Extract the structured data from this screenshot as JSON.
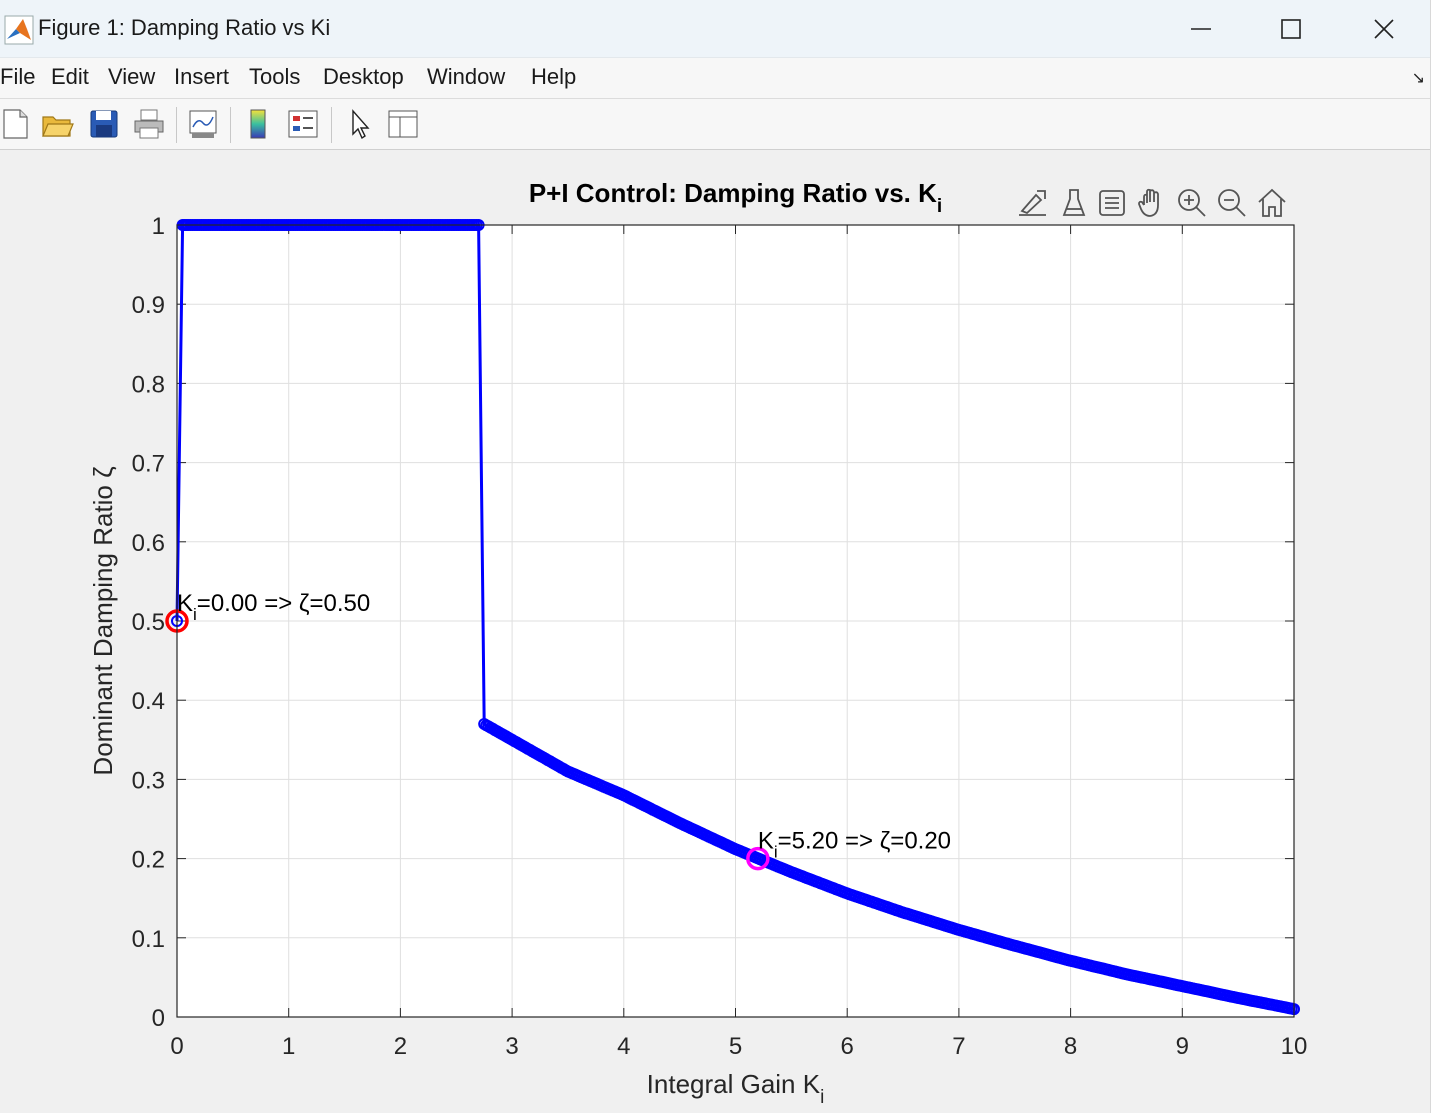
{
  "window": {
    "title": "Figure 1: Damping Ratio vs Ki"
  },
  "menu": {
    "items": [
      "File",
      "Edit",
      "View",
      "Insert",
      "Tools",
      "Desktop",
      "Window",
      "Help"
    ]
  },
  "toolbar": {
    "icons": [
      "new-figure-icon",
      "open-file-icon",
      "save-icon",
      "print-icon",
      "link-plot-icon",
      "colorbar-icon",
      "legend-icon",
      "pointer-icon",
      "property-inspector-icon"
    ]
  },
  "axes_toolbar": {
    "icons": [
      "brush-export-icon",
      "data-brush-icon",
      "data-tips-icon",
      "pan-icon",
      "zoom-in-icon",
      "zoom-out-icon",
      "home-icon"
    ]
  },
  "chart_data": {
    "type": "line",
    "title": "P+I Control: Damping Ratio vs. K",
    "title_subscript": "i",
    "xlabel": "Integral Gain K",
    "xlabel_subscript": "i",
    "ylabel": "Dominant Damping Ratio ζ",
    "xlim": [
      0,
      10
    ],
    "ylim": [
      0,
      1
    ],
    "xticks": [
      "0",
      "1",
      "2",
      "3",
      "4",
      "5",
      "6",
      "7",
      "8",
      "9",
      "10"
    ],
    "yticks": [
      "0",
      "0.1",
      "0.2",
      "0.3",
      "0.4",
      "0.5",
      "0.6",
      "0.7",
      "0.8",
      "0.9",
      "1"
    ],
    "grid": true,
    "series": [
      {
        "color": "#0000ff",
        "marker": "circle",
        "x": [
          0,
          0.05,
          0.1,
          0.5,
          1.0,
          1.5,
          2.0,
          2.5,
          2.7,
          2.75,
          3.0,
          3.5,
          4.0,
          4.5,
          5.0,
          5.5,
          6.0,
          6.5,
          7.0,
          7.5,
          8.0,
          8.5,
          9.0,
          9.5,
          10.0
        ],
        "y": [
          0.5,
          1.0,
          1.0,
          1.0,
          1.0,
          1.0,
          1.0,
          1.0,
          1.0,
          0.37,
          0.35,
          0.31,
          0.28,
          0.245,
          0.212,
          0.183,
          0.156,
          0.132,
          0.11,
          0.09,
          0.071,
          0.054,
          0.039,
          0.024,
          0.01
        ]
      }
    ],
    "highlights": [
      {
        "x": 0.0,
        "y": 0.5,
        "color": "#ff0000",
        "label": "=0.00 => ζ=0.50"
      },
      {
        "x": 5.2,
        "y": 0.2,
        "color": "#ff00ff",
        "label": "=5.20 => ζ=0.20"
      }
    ],
    "annotation_prefix": "K",
    "annotation_subscript": "i"
  }
}
